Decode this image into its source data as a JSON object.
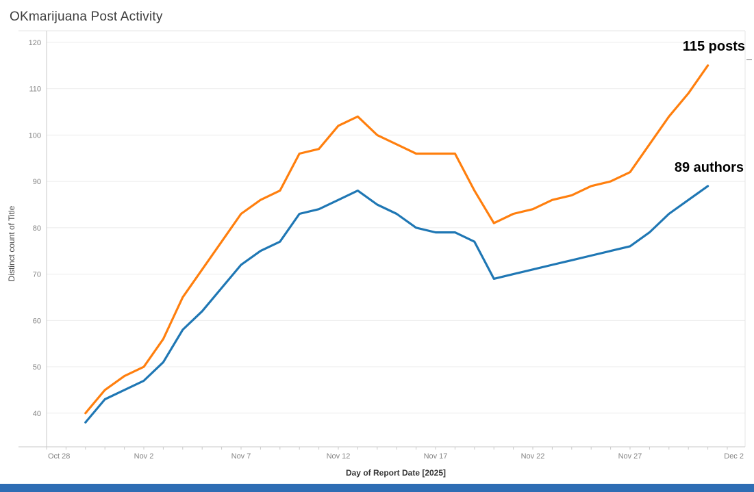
{
  "title": "OKmarijuana Post Activity",
  "annotations": {
    "posts": "115 posts",
    "authors": "89 authors"
  },
  "footer_bar_color": "#2e6db4",
  "chart_data": {
    "type": "line",
    "title": "OKmarijuana Post Activity",
    "xlabel": "Day of Report Date [2025]",
    "ylabel": "Distinct count of Title",
    "ylim": [
      40,
      120
    ],
    "grid": true,
    "legend": "end-of-line labels",
    "yticks": [
      40,
      50,
      60,
      70,
      80,
      90,
      100,
      110,
      120
    ],
    "xticklabels": [
      "Oct 28",
      "Nov 2",
      "Nov 7",
      "Nov 12",
      "Nov 17",
      "Nov 22",
      "Nov 27",
      "Dec 2"
    ],
    "x": [
      "Oct 30",
      "Oct 31",
      "Nov 1",
      "Nov 2",
      "Nov 3",
      "Nov 4",
      "Nov 5",
      "Nov 6",
      "Nov 7",
      "Nov 8",
      "Nov 9",
      "Nov 10",
      "Nov 11",
      "Nov 12",
      "Nov 13",
      "Nov 14",
      "Nov 15",
      "Nov 16",
      "Nov 17",
      "Nov 18",
      "Nov 19",
      "Nov 20",
      "Nov 21",
      "Nov 22",
      "Nov 23",
      "Nov 24",
      "Nov 25",
      "Nov 26",
      "Nov 27",
      "Nov 28",
      "Nov 29",
      "Nov 30",
      "Dec 1"
    ],
    "series": [
      {
        "name": "posts",
        "color": "#ff7f0e",
        "end_label": "115 posts",
        "values": [
          40,
          45,
          48,
          50,
          56,
          65,
          71,
          77,
          83,
          86,
          88,
          96,
          97,
          102,
          104,
          100,
          98,
          96,
          96,
          96,
          88,
          81,
          83,
          84,
          86,
          87,
          89,
          90,
          92,
          98,
          104,
          109,
          115
        ]
      },
      {
        "name": "authors",
        "color": "#1f77b4",
        "end_label": "89 authors",
        "values": [
          38,
          43,
          45,
          47,
          51,
          58,
          62,
          67,
          72,
          75,
          77,
          83,
          84,
          86,
          88,
          85,
          83,
          80,
          79,
          79,
          77,
          69,
          70,
          71,
          72,
          73,
          74,
          75,
          76,
          79,
          83,
          86,
          89
        ]
      }
    ]
  }
}
